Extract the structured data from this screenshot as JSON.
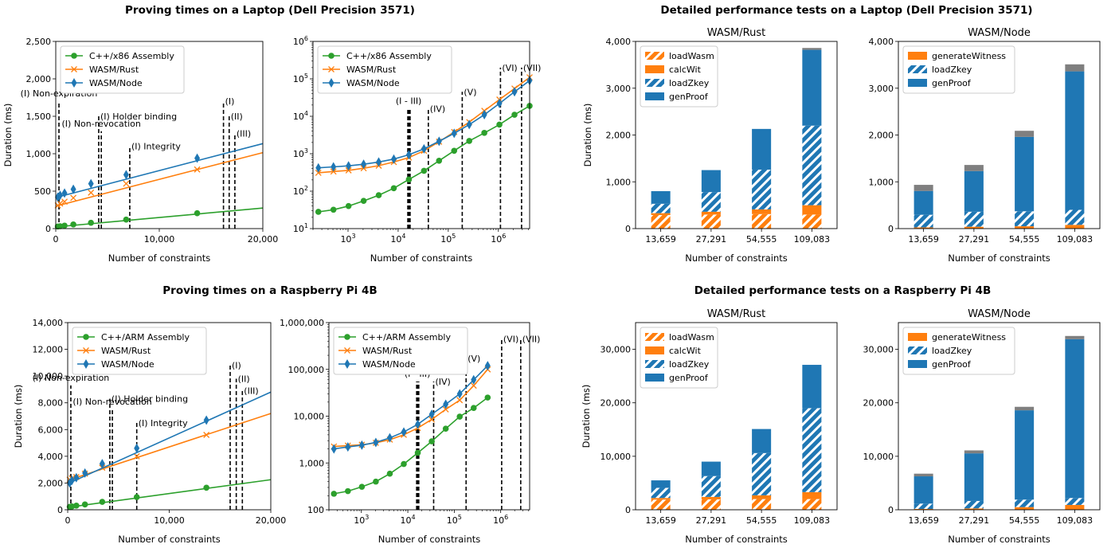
{
  "sections": [
    {
      "title": "Proving times on a Laptop (Dell Precision 3571)"
    },
    {
      "title": "Detailed performance tests on a Laptop (Dell Precision 3571)"
    },
    {
      "title": "Proving times on a Raspberry Pi 4B"
    },
    {
      "title": "Detailed performance tests on a Raspberry Pi 4B"
    }
  ],
  "colors": {
    "green": "#2ca02c",
    "orange": "#ff7f0e",
    "blue": "#1f77b4",
    "gray": "#7f7f7f"
  },
  "chart_data": [
    {
      "type": "line",
      "xlabel": "Number of constraints",
      "ylabel": "Duration (ms)",
      "xlim": [
        0,
        20000
      ],
      "ylim": [
        0,
        2500
      ],
      "xticks": [
        0,
        10000,
        20000
      ],
      "yticks": [
        0,
        500,
        1000,
        1500,
        2000,
        2500
      ],
      "legend": "top-left",
      "series": [
        {
          "name": "C++/x86 Assembly",
          "color": "green",
          "marker": "circle",
          "x": [
            200,
            420,
            850,
            1700,
            3400,
            6800,
            13659
          ],
          "y": [
            28,
            32,
            40,
            55,
            78,
            120,
            205
          ],
          "trend": [
            [
              0,
              22
            ],
            [
              20000,
              275
            ]
          ]
        },
        {
          "name": "WASM/Rust",
          "color": "orange",
          "marker": "x",
          "x": [
            200,
            420,
            850,
            1700,
            3400,
            6800,
            13659
          ],
          "y": [
            310,
            335,
            360,
            410,
            480,
            600,
            790
          ],
          "trend": [
            [
              0,
              300
            ],
            [
              20000,
              1015
            ]
          ]
        },
        {
          "name": "WASM/Node",
          "color": "blue",
          "marker": "diamond",
          "x": [
            200,
            420,
            850,
            1700,
            3400,
            6800,
            13659
          ],
          "y": [
            420,
            445,
            475,
            525,
            600,
            720,
            940
          ],
          "trend": [
            [
              0,
              415
            ],
            [
              20000,
              1135
            ]
          ]
        }
      ],
      "vlines": [
        {
          "x": 310,
          "top": 1700,
          "label": "(I) Non-expiration"
        },
        {
          "x": 4150,
          "top": 1500,
          "label": "(I) Holder binding"
        },
        {
          "x": 4400,
          "top": 1300,
          "label": "(I) Non-revocation"
        },
        {
          "x": 7150,
          "top": 1100,
          "label": "(I) Integrity"
        },
        {
          "x": 16200,
          "top": 1700,
          "label": "(I)"
        },
        {
          "x": 16750,
          "top": 1500,
          "label": "(II)"
        },
        {
          "x": 17300,
          "top": 1270,
          "label": "(III)"
        }
      ]
    },
    {
      "type": "line",
      "xscale": "log",
      "yscale": "log",
      "xlabel": "Number of constraints",
      "ylabel": "",
      "xlim": [
        200,
        4200000
      ],
      "ylim": [
        10,
        1000000
      ],
      "xticks": [
        1000,
        10000,
        100000,
        1000000
      ],
      "xticklabels": [
        "10^3",
        "10^4",
        "10^5",
        "10^6"
      ],
      "yticks": [
        10,
        100,
        1000,
        10000,
        100000,
        1000000
      ],
      "yticklabels": [
        "10^1",
        "10^2",
        "10^3",
        "10^4",
        "10^5",
        "10^6"
      ],
      "legend": "top-left",
      "series": [
        {
          "name": "C++/x86 Assembly",
          "color": "green",
          "marker": "circle",
          "x": [
            256,
            512,
            1024,
            2048,
            4096,
            8192,
            16384,
            32768,
            65536,
            131072,
            262144,
            524288,
            1048576,
            2097152,
            4194304
          ],
          "y": [
            28,
            32,
            40,
            55,
            78,
            120,
            205,
            350,
            650,
            1200,
            2200,
            3600,
            6000,
            11000,
            19000
          ]
        },
        {
          "name": "WASM/Rust",
          "color": "orange",
          "marker": "x",
          "x": [
            256,
            512,
            1024,
            2048,
            4096,
            8192,
            16384,
            32768,
            65536,
            131072,
            262144,
            524288,
            1048576,
            2097152,
            4194304
          ],
          "y": [
            310,
            335,
            360,
            410,
            480,
            600,
            790,
            1200,
            2100,
            3800,
            7000,
            14000,
            28000,
            55000,
            110000
          ]
        },
        {
          "name": "WASM/Node",
          "color": "blue",
          "marker": "diamond",
          "x": [
            256,
            512,
            1024,
            2048,
            4096,
            8192,
            16384,
            32768,
            65536,
            131072,
            262144,
            524288,
            1048576,
            2097152,
            4194304
          ],
          "y": [
            420,
            445,
            475,
            525,
            600,
            720,
            940,
            1350,
            2150,
            3500,
            6000,
            11000,
            22000,
            45000,
            90000
          ]
        }
      ],
      "vlines": [
        {
          "x": 15600,
          "top": 16000,
          "label": ""
        },
        {
          "x": 16200,
          "top": 16000,
          "label": "(I - III)"
        },
        {
          "x": 16800,
          "top": 16000,
          "label": ""
        },
        {
          "x": 17300,
          "top": 16000,
          "label": ""
        },
        {
          "x": 40000,
          "top": 16000,
          "label": "(IV)"
        },
        {
          "x": 190000,
          "top": 45000,
          "label": "(V)"
        },
        {
          "x": 1100000,
          "top": 200000,
          "label": "(VI)"
        },
        {
          "x": 2900000,
          "top": 200000,
          "label": "(VII)"
        }
      ]
    },
    {
      "type": "bar",
      "stacked": true,
      "title": "WASM/Rust",
      "categories": [
        "13,659",
        "27,291",
        "54,555",
        "109,083"
      ],
      "xlabel": "Number of constraints",
      "ylabel": "Duration (ms)",
      "ylim": [
        0,
        4000
      ],
      "yticks": [
        0,
        1000,
        2000,
        3000,
        4000
      ],
      "legend": "top-left",
      "series": [
        {
          "name": "loadWasm",
          "color": "orange",
          "hatch": true,
          "values": [
            290,
            300,
            310,
            300
          ]
        },
        {
          "name": "calcWit",
          "color": "orange",
          "hatch": false,
          "values": [
            40,
            60,
            100,
            200
          ]
        },
        {
          "name": "loadZkey",
          "color": "blue",
          "hatch": true,
          "values": [
            200,
            420,
            850,
            1700
          ]
        },
        {
          "name": "genProof",
          "color": "blue",
          "hatch": false,
          "values": [
            270,
            470,
            870,
            1620
          ]
        },
        {
          "name": "",
          "color": "gray",
          "hatch": false,
          "values": [
            0,
            0,
            0,
            40
          ]
        }
      ]
    },
    {
      "type": "bar",
      "stacked": true,
      "title": "WASM/Node",
      "categories": [
        "13,659",
        "27,291",
        "54,555",
        "109,083"
      ],
      "xlabel": "Number of constraints",
      "ylabel": "",
      "ylim": [
        0,
        4000
      ],
      "yticks": [
        0,
        1000,
        2000,
        3000,
        4000
      ],
      "legend": "top-left",
      "series": [
        {
          "name": "generateWitness",
          "color": "orange",
          "hatch": false,
          "values": [
            25,
            40,
            50,
            80
          ]
        },
        {
          "name": "loadZkey",
          "color": "blue",
          "hatch": true,
          "values": [
            270,
            320,
            320,
            320
          ]
        },
        {
          "name": "genProof",
          "color": "blue",
          "hatch": false,
          "values": [
            510,
            870,
            1590,
            2960
          ]
        },
        {
          "name": "",
          "color": "gray",
          "hatch": false,
          "values": [
            130,
            130,
            130,
            150
          ]
        }
      ]
    },
    {
      "type": "line",
      "xlabel": "Number of constraints",
      "ylabel": "Duration (ms)",
      "xlim": [
        0,
        20000
      ],
      "ylim": [
        0,
        14000
      ],
      "xticks": [
        0,
        10000,
        20000
      ],
      "yticks": [
        0,
        2000,
        4000,
        6000,
        8000,
        10000,
        12000,
        14000
      ],
      "legend": "top-left",
      "series": [
        {
          "name": "C++/ARM Assembly",
          "color": "green",
          "marker": "circle",
          "x": [
            200,
            420,
            850,
            1700,
            3400,
            6800,
            13659
          ],
          "y": [
            220,
            250,
            310,
            400,
            590,
            950,
            1650
          ],
          "trend": [
            [
              0,
              180
            ],
            [
              20000,
              2250
            ]
          ]
        },
        {
          "name": "WASM/Rust",
          "color": "orange",
          "marker": "x",
          "x": [
            200,
            420,
            850,
            1700,
            3400,
            6800,
            13659
          ],
          "y": [
            2250,
            2350,
            2450,
            2700,
            3150,
            4000,
            5600
          ],
          "trend": [
            [
              0,
              2200
            ],
            [
              20000,
              7200
            ]
          ]
        },
        {
          "name": "WASM/Node",
          "color": "blue",
          "marker": "diamond",
          "x": [
            200,
            420,
            850,
            1700,
            3400,
            6800,
            13659
          ],
          "y": [
            2000,
            2200,
            2400,
            2750,
            3450,
            4600,
            6700
          ],
          "trend": [
            [
              0,
              1950
            ],
            [
              20000,
              8800
            ]
          ]
        }
      ],
      "vlines": [
        {
          "x": 310,
          "top": 9300,
          "label": "(I) Non-expiration"
        },
        {
          "x": 4150,
          "top": 8300,
          "label": "(I) Holder binding"
        },
        {
          "x": 4400,
          "top": 7500,
          "label": "(I) Non-revocation"
        },
        {
          "x": 6800,
          "top": 6500,
          "label": "(I) Integrity"
        },
        {
          "x": 16000,
          "top": 10800,
          "label": "(I)"
        },
        {
          "x": 16600,
          "top": 9800,
          "label": "(II)"
        },
        {
          "x": 17200,
          "top": 8900,
          "label": "(III)"
        }
      ]
    },
    {
      "type": "line",
      "xscale": "log",
      "yscale": "log",
      "xlabel": "Number of constraints",
      "ylabel": "",
      "xlim": [
        200,
        4200000
      ],
      "ylim": [
        100,
        1000000
      ],
      "xticks": [
        1000,
        10000,
        100000,
        1000000
      ],
      "xticklabels": [
        "10^3",
        "10^4",
        "10^5",
        "10^6"
      ],
      "yticks": [
        100,
        1000,
        10000,
        100000,
        1000000
      ],
      "yticklabels": [
        "100",
        "1,000",
        "10,000",
        "100,000",
        "1,000,000"
      ],
      "legend": "top-left",
      "series": [
        {
          "name": "C++/ARM Assembly",
          "color": "green",
          "marker": "circle",
          "x": [
            256,
            512,
            1024,
            2048,
            4096,
            8192,
            16384,
            32768,
            65536,
            131072,
            262144,
            524288
          ],
          "y": [
            220,
            250,
            310,
            400,
            590,
            950,
            1650,
            2900,
            5400,
            9800,
            15000,
            25000
          ]
        },
        {
          "name": "WASM/Rust",
          "color": "orange",
          "marker": "x",
          "x": [
            256,
            512,
            1024,
            2048,
            4096,
            8192,
            16384,
            32768,
            65536,
            131072,
            262144,
            524288
          ],
          "y": [
            2250,
            2350,
            2450,
            2700,
            3150,
            4000,
            5600,
            8500,
            14000,
            22000,
            45000,
            100000
          ]
        },
        {
          "name": "WASM/Node",
          "color": "blue",
          "marker": "diamond",
          "x": [
            256,
            512,
            1024,
            2048,
            4096,
            8192,
            16384,
            32768,
            65536,
            131072,
            262144,
            524288
          ],
          "y": [
            2000,
            2200,
            2400,
            2750,
            3450,
            4600,
            6700,
            11000,
            18000,
            30000,
            60000,
            120000
          ]
        }
      ],
      "vlines": [
        {
          "x": 15500,
          "top": 55000,
          "label": ""
        },
        {
          "x": 16100,
          "top": 55000,
          "label": "(I - III)"
        },
        {
          "x": 16700,
          "top": 55000,
          "label": ""
        },
        {
          "x": 17200,
          "top": 55000,
          "label": ""
        },
        {
          "x": 36000,
          "top": 55000,
          "label": "(IV)"
        },
        {
          "x": 180000,
          "top": 170000,
          "label": "(V)"
        },
        {
          "x": 1050000,
          "top": 450000,
          "label": "(VI)"
        },
        {
          "x": 2700000,
          "top": 450000,
          "label": "(VII)"
        }
      ]
    },
    {
      "type": "bar",
      "stacked": true,
      "title": "WASM/Rust",
      "categories": [
        "13,659",
        "27,291",
        "54,555",
        "109,083"
      ],
      "xlabel": "Number of constraints",
      "ylabel": "Duration (ms)",
      "ylim": [
        0,
        35000
      ],
      "yticks": [
        0,
        10000,
        20000,
        30000
      ],
      "legend": "top-left",
      "series": [
        {
          "name": "loadWasm",
          "color": "orange",
          "hatch": true,
          "values": [
            1900,
            1950,
            2000,
            2000
          ]
        },
        {
          "name": "calcWit",
          "color": "orange",
          "hatch": false,
          "values": [
            300,
            450,
            700,
            1300
          ]
        },
        {
          "name": "loadZkey",
          "color": "blue",
          "hatch": true,
          "values": [
            1900,
            3900,
            7900,
            15700
          ]
        },
        {
          "name": "genProof",
          "color": "blue",
          "hatch": false,
          "values": [
            1400,
            2700,
            4500,
            8100
          ]
        }
      ]
    },
    {
      "type": "bar",
      "stacked": true,
      "title": "WASM/Node",
      "categories": [
        "13,659",
        "27,291",
        "54,555",
        "109,083"
      ],
      "xlabel": "Number of constraints",
      "ylabel": "",
      "ylim": [
        0,
        35000
      ],
      "yticks": [
        0,
        10000,
        20000,
        30000
      ],
      "legend": "top-left",
      "series": [
        {
          "name": "generateWitness",
          "color": "orange",
          "hatch": false,
          "values": [
            150,
            250,
            500,
            900
          ]
        },
        {
          "name": "loadZkey",
          "color": "blue",
          "hatch": true,
          "values": [
            1000,
            1400,
            1400,
            1300
          ]
        },
        {
          "name": "genProof",
          "color": "blue",
          "hatch": false,
          "values": [
            5100,
            8900,
            16700,
            29700
          ]
        },
        {
          "name": "",
          "color": "gray",
          "hatch": false,
          "values": [
            500,
            550,
            650,
            600
          ]
        }
      ]
    }
  ]
}
